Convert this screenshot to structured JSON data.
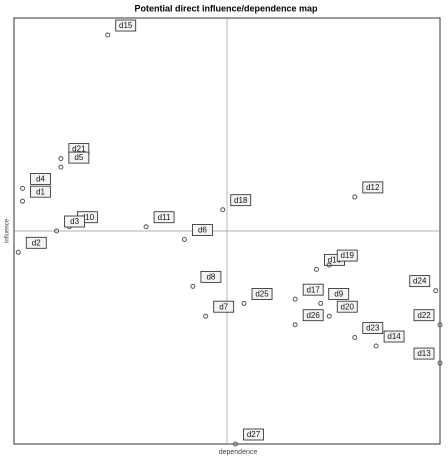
{
  "chart_data": {
    "type": "scatter",
    "title": "Potential direct influence/dependence map",
    "xlabel": "dependence",
    "ylabel": "influence",
    "labels": [
      "d15",
      "d21",
      "d5",
      "d4",
      "d1",
      "d10",
      "d3",
      "d2",
      "d11",
      "d6",
      "d18",
      "d12",
      "d8",
      "d7",
      "d25",
      "d16",
      "d19",
      "d17",
      "d9",
      "d24",
      "d26",
      "d20",
      "d23",
      "d22",
      "d14",
      "d13",
      "d27"
    ],
    "x": [
      22,
      11,
      11,
      2,
      2,
      13,
      10,
      1,
      31,
      40,
      49,
      80,
      42,
      45,
      54,
      71,
      74,
      66,
      72,
      99,
      66,
      74,
      80,
      100,
      85,
      100,
      52
    ],
    "y": [
      96,
      67,
      65,
      60,
      57,
      51,
      50,
      45,
      51,
      48,
      55,
      58,
      37,
      30,
      33,
      41,
      42,
      34,
      33,
      36,
      28,
      30,
      25,
      28,
      23,
      19,
      0
    ],
    "xlim": [
      0,
      100
    ],
    "ylim": [
      0,
      100
    ],
    "color": "#555555"
  }
}
